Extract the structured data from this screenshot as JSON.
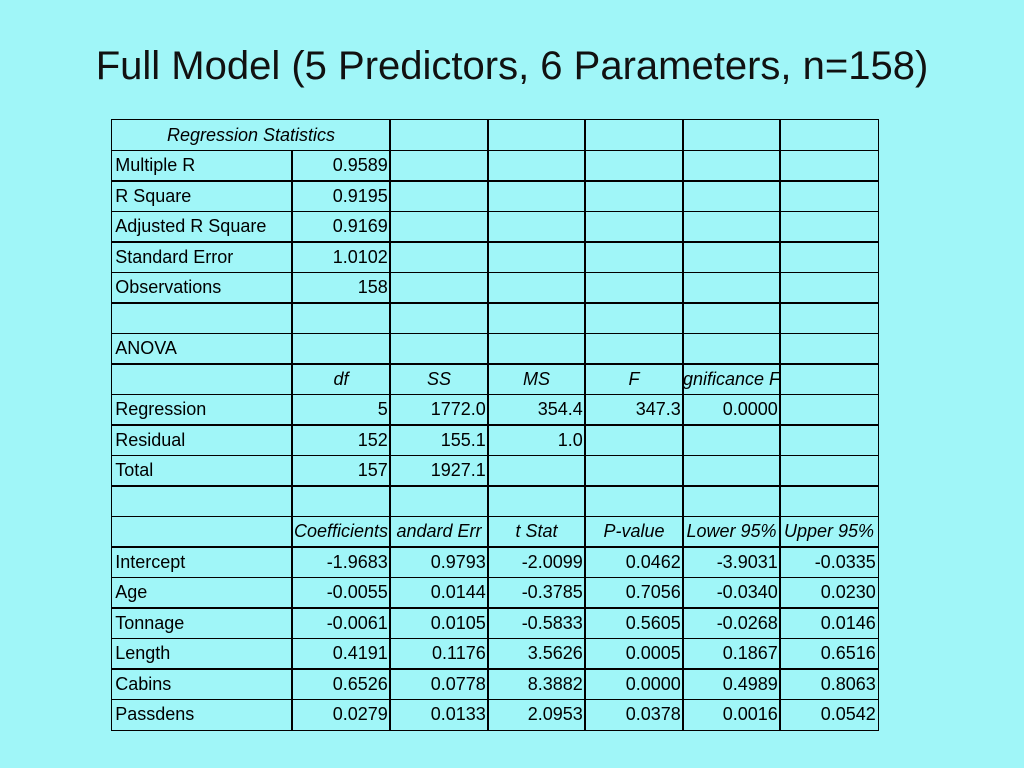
{
  "title": "Full Model (5 Predictors, 6 Parameters, n=158)",
  "table": {
    "rows": [
      [
        "Regression Statistics",
        null,
        null,
        null,
        null,
        null,
        null
      ],
      [
        "Multiple R",
        "0.9589",
        null,
        null,
        null,
        null,
        null
      ],
      [
        "R Square",
        "0.9195",
        null,
        null,
        null,
        null,
        null
      ],
      [
        "Adjusted R Square",
        "0.9169",
        null,
        null,
        null,
        null,
        null
      ],
      [
        "Standard Error",
        "1.0102",
        null,
        null,
        null,
        null,
        null
      ],
      [
        "Observations",
        "158",
        null,
        null,
        null,
        null,
        null
      ],
      [
        null,
        null,
        null,
        null,
        null,
        null,
        null
      ],
      [
        "ANOVA",
        null,
        null,
        null,
        null,
        null,
        null
      ],
      [
        null,
        "df",
        "SS",
        "MS",
        "F",
        "gnificance F",
        null
      ],
      [
        "Regression",
        "5",
        "1772.0",
        "354.4",
        "347.3",
        "0.0000",
        null
      ],
      [
        "Residual",
        "152",
        "155.1",
        "1.0",
        null,
        null,
        null
      ],
      [
        "Total",
        "157",
        "1927.1",
        null,
        null,
        null,
        null
      ],
      [
        null,
        null,
        null,
        null,
        null,
        null,
        null
      ],
      [
        null,
        "Coefficients",
        "andard Err",
        "t Stat",
        "P-value",
        "Lower 95%",
        "Upper 95%"
      ],
      [
        "Intercept",
        "-1.9683",
        "0.9793",
        "-2.0099",
        "0.0462",
        "-3.9031",
        "-0.0335"
      ],
      [
        "Age",
        "-0.0055",
        "0.0144",
        "-0.3785",
        "0.7056",
        "-0.0340",
        "0.0230"
      ],
      [
        "Tonnage",
        "-0.0061",
        "0.0105",
        "-0.5833",
        "0.5605",
        "-0.0268",
        "0.0146"
      ],
      [
        "Length",
        "0.4191",
        "0.1176",
        "3.5626",
        "0.0005",
        "0.1867",
        "0.6516"
      ],
      [
        "Cabins",
        "0.6526",
        "0.0778",
        "8.3882",
        "0.0000",
        "0.4989",
        "0.8063"
      ],
      [
        "Passdens",
        "0.0279",
        "0.0133",
        "2.0953",
        "0.0378",
        "0.0016",
        "0.0542"
      ]
    ]
  }
}
